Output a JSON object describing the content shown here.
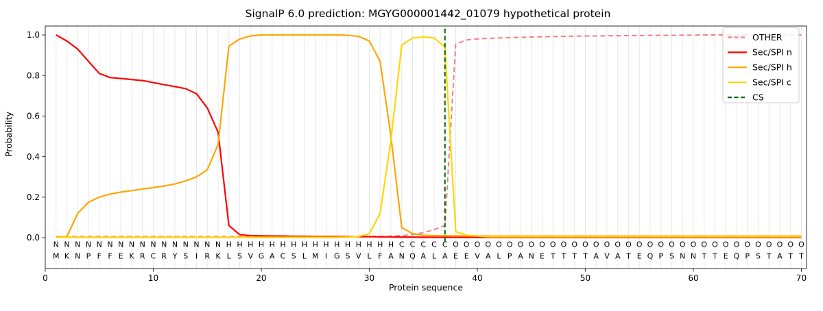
{
  "chart_data": {
    "type": "line",
    "title": "SignalP 6.0 prediction: MGYG000001442_01079 hypothetical protein",
    "xlabel": "Protein sequence",
    "ylabel": "Probability",
    "xlim": [
      0,
      70.5
    ],
    "ylim": [
      -0.15,
      1.04
    ],
    "x_ticks": [
      0,
      10,
      20,
      30,
      40,
      50,
      60,
      70
    ],
    "y_ticks": [
      0.0,
      0.2,
      0.4,
      0.6,
      0.8,
      1.0
    ],
    "grid": "vertical-light-gray-per-residue",
    "legend_position": "upper right",
    "positions": [
      1,
      2,
      3,
      4,
      5,
      6,
      7,
      8,
      9,
      10,
      11,
      12,
      13,
      14,
      15,
      16,
      17,
      18,
      19,
      20,
      21,
      22,
      23,
      24,
      25,
      26,
      27,
      28,
      29,
      30,
      31,
      32,
      33,
      34,
      35,
      36,
      37,
      38,
      39,
      40,
      41,
      42,
      43,
      44,
      45,
      46,
      47,
      48,
      49,
      50,
      51,
      52,
      53,
      54,
      55,
      56,
      57,
      58,
      59,
      60,
      61,
      62,
      63,
      64,
      65,
      66,
      67,
      68,
      69,
      70
    ],
    "series": [
      {
        "name": "OTHER",
        "color": "#f08080",
        "style": "dashed",
        "values": [
          0.006,
          0.006,
          0.006,
          0.006,
          0.006,
          0.006,
          0.006,
          0.006,
          0.006,
          0.006,
          0.006,
          0.006,
          0.006,
          0.006,
          0.006,
          0.006,
          0.006,
          0.006,
          0.006,
          0.006,
          0.006,
          0.006,
          0.006,
          0.006,
          0.006,
          0.006,
          0.006,
          0.006,
          0.006,
          0.007,
          0.007,
          0.008,
          0.01,
          0.015,
          0.025,
          0.04,
          0.06,
          0.955,
          0.975,
          0.98,
          0.983,
          0.985,
          0.987,
          0.988,
          0.99,
          0.991,
          0.992,
          0.993,
          0.994,
          0.995,
          0.995,
          0.996,
          0.996,
          0.997,
          0.997,
          0.998,
          0.998,
          0.998,
          0.999,
          0.999,
          1.0,
          1.0,
          1.0,
          1.0,
          1.0,
          1.0,
          1.0,
          1.0,
          1.0,
          1.0
        ]
      },
      {
        "name": "Sec/SPI n",
        "color": "#ff0000",
        "style": "solid",
        "values": [
          1.0,
          0.97,
          0.93,
          0.87,
          0.81,
          0.79,
          0.785,
          0.78,
          0.775,
          0.765,
          0.755,
          0.745,
          0.735,
          0.71,
          0.64,
          0.52,
          0.06,
          0.015,
          0.01,
          0.009,
          0.008,
          0.008,
          0.007,
          0.007,
          0.006,
          0.006,
          0.006,
          0.005,
          0.005,
          0.005,
          0.004,
          0.004,
          0.003,
          0.003,
          0.002,
          0.002,
          0.002,
          0.002,
          0.002,
          0.002,
          0.002,
          0.002,
          0.002,
          0.002,
          0.002,
          0.002,
          0.002,
          0.002,
          0.002,
          0.002,
          0.002,
          0.002,
          0.002,
          0.002,
          0.002,
          0.002,
          0.002,
          0.002,
          0.002,
          0.002,
          0.002,
          0.002,
          0.002,
          0.002,
          0.002,
          0.002,
          0.002,
          0.002,
          0.002,
          0.002
        ]
      },
      {
        "name": "Sec/SPI h",
        "color": "#ffa500",
        "style": "solid",
        "values": [
          0.002,
          0.005,
          0.12,
          0.175,
          0.2,
          0.215,
          0.225,
          0.232,
          0.24,
          0.247,
          0.255,
          0.265,
          0.28,
          0.3,
          0.335,
          0.46,
          0.945,
          0.98,
          0.995,
          1.0,
          1.0,
          1.0,
          1.0,
          1.0,
          1.0,
          1.0,
          1.0,
          0.998,
          0.993,
          0.97,
          0.87,
          0.5,
          0.05,
          0.02,
          0.012,
          0.01,
          0.01,
          0.009,
          0.009,
          0.009,
          0.008,
          0.008,
          0.008,
          0.008,
          0.008,
          0.008,
          0.008,
          0.008,
          0.008,
          0.008,
          0.008,
          0.008,
          0.008,
          0.008,
          0.008,
          0.008,
          0.008,
          0.008,
          0.008,
          0.008,
          0.008,
          0.008,
          0.008,
          0.008,
          0.008,
          0.008,
          0.008,
          0.008,
          0.008,
          0.008
        ]
      },
      {
        "name": "Sec/SPI c",
        "color": "#ffd700",
        "style": "solid",
        "values": [
          0.002,
          0.002,
          0.002,
          0.002,
          0.002,
          0.002,
          0.002,
          0.002,
          0.002,
          0.002,
          0.002,
          0.002,
          0.002,
          0.002,
          0.002,
          0.002,
          0.002,
          0.002,
          0.002,
          0.002,
          0.002,
          0.002,
          0.002,
          0.002,
          0.002,
          0.002,
          0.002,
          0.003,
          0.006,
          0.02,
          0.12,
          0.48,
          0.95,
          0.985,
          0.99,
          0.985,
          0.94,
          0.03,
          0.012,
          0.008,
          0.005,
          0.005,
          0.005,
          0.005,
          0.005,
          0.005,
          0.005,
          0.005,
          0.005,
          0.005,
          0.005,
          0.005,
          0.005,
          0.005,
          0.005,
          0.005,
          0.005,
          0.005,
          0.005,
          0.005,
          0.005,
          0.005,
          0.005,
          0.005,
          0.005,
          0.005,
          0.005,
          0.005,
          0.005,
          0.005
        ]
      },
      {
        "name": "CS",
        "color": "#006400",
        "style": "dashed",
        "cs_position": 37
      }
    ],
    "sequence": "MKNPFFEKRCRYSIRKLSVGACSLMIGSVLFANQALAEEVALPANETTTTAVATEQPSNNTTEQPSTATT",
    "region_labels": "NNNNNNNNNNNNNNNNHHHHHHHHHHHHHHHHCCCCCOOOOOOOOOOOOOOOOOOOOOOOOOOOOOOOOO",
    "label_colors": {
      "N": "#ff0000",
      "H": "#ffa500",
      "C": "#ffd700",
      "O": "#7f7f7f"
    },
    "sequence_color": "#111111",
    "legend_labels": [
      "OTHER",
      "Sec/SPI n",
      "Sec/SPI h",
      "Sec/SPI c",
      "CS"
    ]
  }
}
